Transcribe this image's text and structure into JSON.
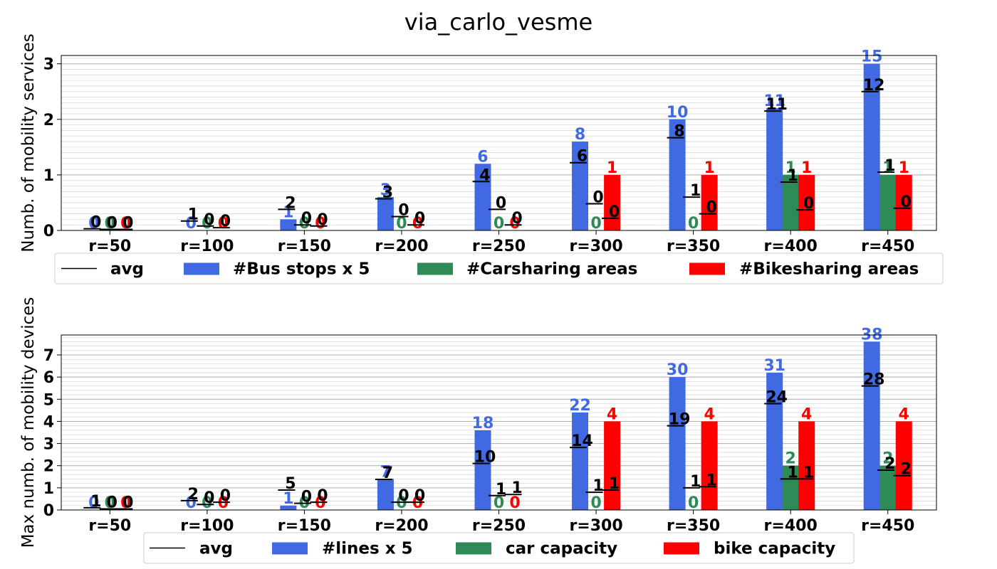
{
  "title": "via_carlo_vesme",
  "colors": {
    "bus": "#4169e1",
    "car": "#2e8b57",
    "bike": "#ff0000",
    "avg": "#000000",
    "grid": "#b0b0b0"
  },
  "chart_data": [
    {
      "type": "bar",
      "title": "",
      "ylabel": "Numb. of mobility services",
      "ylim": [
        0,
        3.15
      ],
      "yticks": [
        0,
        1,
        2,
        3
      ],
      "grid": true,
      "legend_position": "bottom",
      "categories": [
        "r=50",
        "r=100",
        "r=150",
        "r=200",
        "r=250",
        "r=300",
        "r=350",
        "r=400",
        "r=450"
      ],
      "legend": [
        "avg",
        "#Bus stops x 5",
        "#Carsharing areas",
        "#Bikesharing areas"
      ],
      "series": [
        {
          "name": "#Bus stops x 5",
          "color": "#4169e1",
          "values": [
            0,
            0,
            0.2,
            0.6,
            1.2,
            1.6,
            2.0,
            2.2,
            3.0
          ],
          "labels": [
            "0",
            "0",
            "1",
            "3",
            "6",
            "8",
            "10",
            "11",
            "15"
          ],
          "avg": [
            0.03,
            0.17,
            0.38,
            0.57,
            0.88,
            1.22,
            1.67,
            2.15,
            2.5
          ],
          "avg_labels": [
            "0",
            "1",
            "2",
            "3",
            "4",
            "6",
            "8",
            "11",
            "12"
          ]
        },
        {
          "name": "#Carsharing areas",
          "color": "#2e8b57",
          "values": [
            0,
            0,
            0,
            0,
            0,
            0,
            0,
            1,
            1
          ],
          "labels": [
            "0",
            "0",
            "0",
            "0",
            "0",
            "0",
            "0",
            "1",
            "1"
          ],
          "avg": [
            0.02,
            0.08,
            0.1,
            0.25,
            0.38,
            0.48,
            0.6,
            0.87,
            1.05
          ],
          "avg_labels": [
            "0",
            "0",
            "0",
            "0",
            "0",
            "0",
            "1",
            "1",
            "1"
          ]
        },
        {
          "name": "#Bikesharing areas",
          "color": "#ff0000",
          "values": [
            0,
            0,
            0,
            0,
            0,
            1,
            1,
            1,
            1
          ],
          "labels": [
            "0",
            "0",
            "0",
            "0",
            "0",
            "1",
            "1",
            "1",
            "1"
          ],
          "avg": [
            0.02,
            0.05,
            0.08,
            0.1,
            0.1,
            0.22,
            0.3,
            0.37,
            0.4
          ],
          "avg_labels": [
            "0",
            "0",
            "0",
            "0",
            "0",
            "0",
            "0",
            "0",
            "0"
          ]
        }
      ]
    },
    {
      "type": "bar",
      "title": "",
      "ylabel": "Max numb. of mobility devices",
      "ylim": [
        0,
        7.9
      ],
      "yticks": [
        0,
        1,
        2,
        3,
        4,
        5,
        6,
        7
      ],
      "grid": true,
      "legend_position": "bottom",
      "categories": [
        "r=50",
        "r=100",
        "r=150",
        "r=200",
        "r=250",
        "r=300",
        "r=350",
        "r=400",
        "r=450"
      ],
      "legend": [
        "avg",
        "#lines x 5",
        "car capacity",
        "bike capacity"
      ],
      "series": [
        {
          "name": "#lines x 5",
          "color": "#4169e1",
          "values": [
            0,
            0,
            0.2,
            1.4,
            3.6,
            4.4,
            6.0,
            6.2,
            7.6
          ],
          "labels": [
            "0",
            "0",
            "1",
            "7",
            "18",
            "22",
            "30",
            "31",
            "38"
          ],
          "avg": [
            0.1,
            0.42,
            0.9,
            1.38,
            2.1,
            2.82,
            3.8,
            4.8,
            5.6
          ],
          "avg_labels": [
            "1",
            "2",
            "5",
            "7",
            "10",
            "14",
            "19",
            "24",
            "28"
          ]
        },
        {
          "name": "car capacity",
          "color": "#2e8b57",
          "values": [
            0,
            0,
            0,
            0,
            0,
            0,
            0,
            2,
            2
          ],
          "labels": [
            "0",
            "0",
            "0",
            "0",
            "0",
            "0",
            "0",
            "2",
            "2"
          ],
          "avg": [
            0.05,
            0.25,
            0.3,
            0.35,
            0.65,
            0.8,
            1.0,
            1.4,
            1.8
          ],
          "avg_labels": [
            "0",
            "0",
            "0",
            "0",
            "1",
            "1",
            "1",
            "1",
            "2"
          ]
        },
        {
          "name": "bike capacity",
          "color": "#ff0000",
          "values": [
            0,
            0,
            0,
            0,
            0,
            4,
            4,
            4,
            4
          ],
          "labels": [
            "0",
            "0",
            "0",
            "0",
            "0",
            "4",
            "4",
            "4",
            "4"
          ],
          "avg": [
            0.05,
            0.35,
            0.35,
            0.35,
            0.7,
            0.9,
            1.05,
            1.4,
            1.55
          ],
          "avg_labels": [
            "0",
            "0",
            "0",
            "0",
            "1",
            "1",
            "1",
            "1",
            "2"
          ]
        }
      ]
    }
  ]
}
